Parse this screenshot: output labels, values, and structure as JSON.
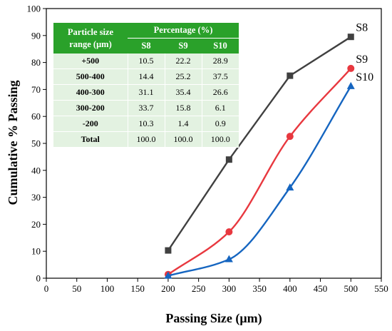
{
  "chart_data": {
    "type": "line",
    "xlabel": "Passing Size (μm)",
    "ylabel": "Cumulative % Passing",
    "xlim": [
      0,
      550
    ],
    "ylim": [
      0,
      100
    ],
    "x_ticks": [
      0,
      50,
      100,
      150,
      200,
      250,
      300,
      350,
      400,
      450,
      500,
      550
    ],
    "y_ticks": [
      0,
      10,
      20,
      30,
      40,
      50,
      60,
      70,
      80,
      90,
      100
    ],
    "x": [
      200,
      300,
      400,
      500
    ],
    "series": [
      {
        "name": "S8",
        "values": [
          10.3,
          44.0,
          75.1,
          89.5
        ],
        "color": "#404040",
        "marker": "square",
        "curve": "straight"
      },
      {
        "name": "S9",
        "values": [
          1.4,
          17.2,
          52.6,
          77.8
        ],
        "color": "#e8383f",
        "marker": "circle",
        "curve": "smooth"
      },
      {
        "name": "S10",
        "values": [
          0.9,
          7.0,
          33.6,
          71.2
        ],
        "color": "#1565c0",
        "marker": "triangle",
        "curve": "smooth"
      }
    ],
    "grid": false,
    "inset_table": {
      "header_col": "Particle size range (μm)",
      "header_group": "Percentage (%)",
      "columns": [
        "S8",
        "S9",
        "S10"
      ],
      "rows": [
        {
          "label": "+500",
          "values": [
            "10.5",
            "22.2",
            "28.9"
          ]
        },
        {
          "label": "500-400",
          "values": [
            "14.4",
            "25.2",
            "37.5"
          ]
        },
        {
          "label": "400-300",
          "values": [
            "31.1",
            "35.4",
            "26.6"
          ]
        },
        {
          "label": "300-200",
          "values": [
            "33.7",
            "15.8",
            "6.1"
          ]
        },
        {
          "label": "-200",
          "values": [
            "10.3",
            "1.4",
            "0.9"
          ]
        },
        {
          "label": "Total",
          "values": [
            "100.0",
            "100.0",
            "100.0"
          ]
        }
      ]
    }
  }
}
